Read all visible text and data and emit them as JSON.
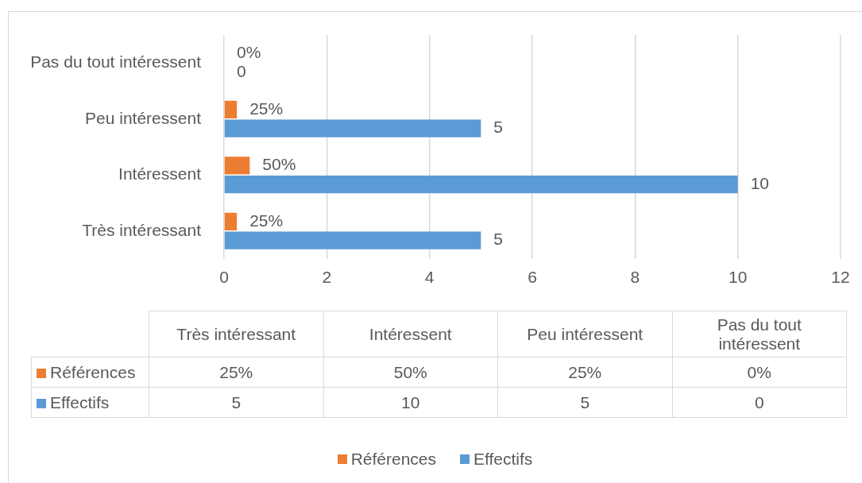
{
  "chart_data": {
    "type": "bar",
    "orientation": "horizontal",
    "categories": [
      "Pas du tout intéressent",
      "Peu intéressent",
      "Intéressent",
      "Très intéressant"
    ],
    "series": [
      {
        "name": "Références",
        "color": "#ed7d31",
        "values": [
          0,
          0.25,
          0.5,
          0.25
        ],
        "value_labels": [
          "0%",
          "25%",
          "50%",
          "25%"
        ]
      },
      {
        "name": "Effectifs",
        "color": "#5b9bd5",
        "values": [
          0,
          5,
          10,
          5
        ],
        "value_labels": [
          "0",
          "5",
          "10",
          "5"
        ]
      }
    ],
    "xlim": [
      0,
      12
    ],
    "xticks": [
      0,
      2,
      4,
      6,
      8,
      10,
      12
    ],
    "grid": "x",
    "legend": "bottom"
  }
}
